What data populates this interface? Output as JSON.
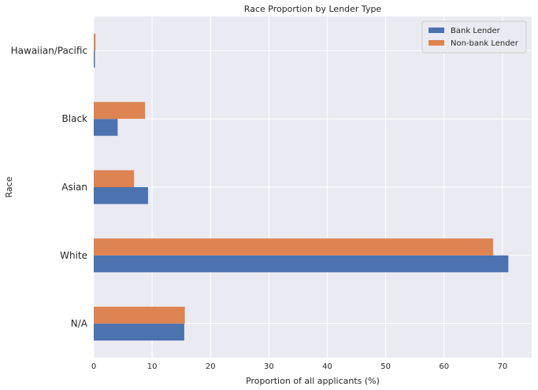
{
  "chart_data": {
    "type": "bar",
    "orientation": "horizontal",
    "title": "Race Proportion by Lender Type",
    "xlabel": "Proportion of all applicants (%)",
    "ylabel": "Race",
    "xlim": [
      0,
      75
    ],
    "xticks": [
      0,
      10,
      20,
      30,
      40,
      50,
      60,
      70
    ],
    "grid": true,
    "legend_position": "top-right",
    "categories": [
      "N/A",
      "White",
      "Asian",
      "Black",
      "Hawaiian/Pacific"
    ],
    "series": [
      {
        "name": "Bank Lender",
        "color": "#4c72b0",
        "values": [
          15.5,
          71.0,
          9.3,
          4.1,
          0.2
        ]
      },
      {
        "name": "Non-bank Lender",
        "color": "#dd8452",
        "values": [
          15.6,
          68.4,
          6.9,
          8.8,
          0.3
        ]
      }
    ],
    "plot_background": "#eaeaf2",
    "grid_color": "#ffffff"
  }
}
